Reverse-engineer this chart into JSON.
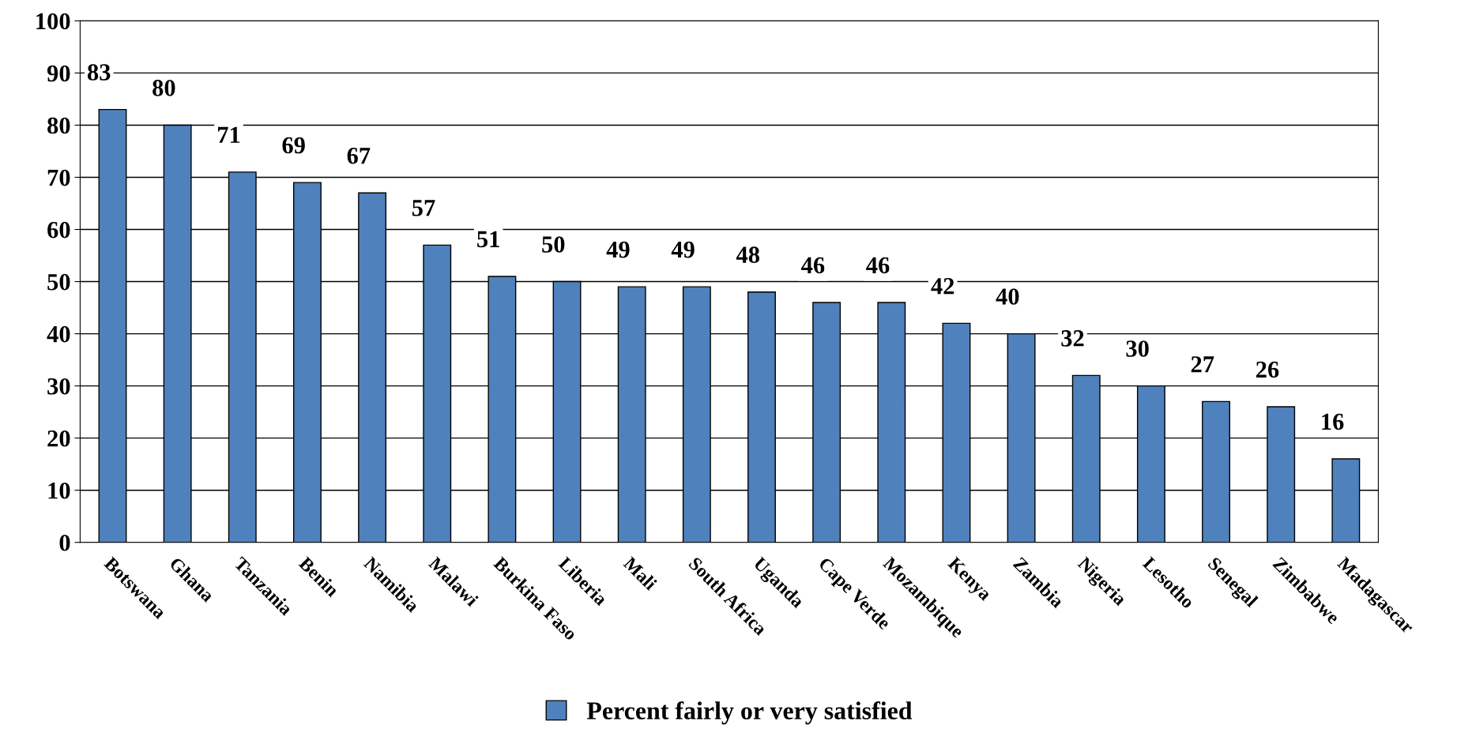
{
  "chart_data": {
    "type": "bar",
    "categories": [
      "Botswana",
      "Ghana",
      "Tanzania",
      "Benin",
      "Namibia",
      "Malawi",
      "Burkina Faso",
      "Liberia",
      "Mali",
      "South Africa",
      "Uganda",
      "Cape Verde",
      "Mozambique",
      "Kenya",
      "Zambia",
      "Nigeria",
      "Lesotho",
      "Senegal",
      "Zimbabwe",
      "Madagascar"
    ],
    "series": [
      {
        "name": "Percent fairly or very satisfied",
        "color": "#4f81bd",
        "values": [
          83,
          80,
          71,
          69,
          67,
          57,
          51,
          50,
          49,
          49,
          48,
          46,
          46,
          42,
          40,
          32,
          30,
          27,
          26,
          16
        ]
      }
    ],
    "ylim": [
      0,
      100
    ],
    "yticks": [
      0,
      10,
      20,
      30,
      40,
      50,
      60,
      70,
      80,
      90,
      100
    ],
    "grid": "y",
    "legend": "bottom",
    "data_labels": true
  }
}
